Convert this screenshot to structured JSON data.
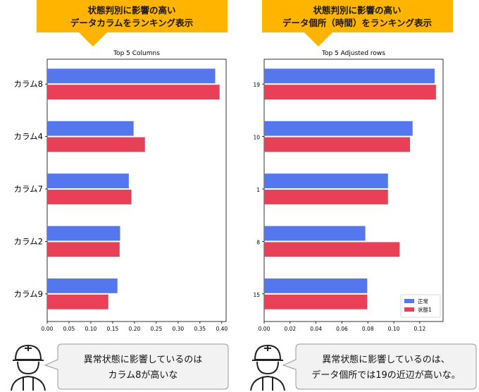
{
  "callouts": [
    {
      "line1": "状態判別に影響の高い",
      "line2": "データカラムをランキング表示"
    },
    {
      "line1": "状態判別に影響の高い",
      "line2": "データ個所（時間）をランキング表示"
    }
  ],
  "bubbles": [
    {
      "line1": "異常状態に影響しているのは",
      "line2": "カラム8が高いな"
    },
    {
      "line1": "異常状態に影響しているのは、",
      "line2": "データ個所では19の近辺が高いな。"
    }
  ],
  "colors": {
    "normal": "#5577ee",
    "abnormal": "#e84057",
    "callout_bg": "#ffb400",
    "bubble_bg": "#f2f2f2",
    "bubble_border": "#999999"
  },
  "chart_data": [
    {
      "type": "bar",
      "orientation": "horizontal",
      "title": "Top 5 Columns",
      "categories": [
        "カラム8",
        "カラム4",
        "カラム7",
        "カラム2",
        "カラム9"
      ],
      "series": [
        {
          "name": "正常",
          "values": [
            0.385,
            0.198,
            0.187,
            0.167,
            0.161
          ]
        },
        {
          "name": "状態1",
          "values": [
            0.395,
            0.224,
            0.193,
            0.166,
            0.14
          ]
        }
      ],
      "xlim": [
        0,
        0.41
      ],
      "xticks": [
        "0.00",
        "0.05",
        "0.10",
        "0.15",
        "0.20",
        "0.25",
        "0.30",
        "0.35",
        "0.40"
      ],
      "legend": "none"
    },
    {
      "type": "bar",
      "orientation": "horizontal",
      "title": "Top 5 Adjusted rows",
      "categories": [
        "19",
        "10",
        "1",
        "8",
        "15"
      ],
      "series": [
        {
          "name": "正常",
          "values": [
            0.1315,
            0.1145,
            0.0955,
            0.078,
            0.0795
          ]
        },
        {
          "name": "状態1",
          "values": [
            0.1325,
            0.1125,
            0.0955,
            0.1045,
            0.0795
          ]
        }
      ],
      "xlim": [
        0,
        0.138
      ],
      "xticks": [
        "0.00",
        "0.02",
        "0.04",
        "0.06",
        "0.08",
        "0.10",
        "0.12"
      ],
      "legend": "lower-right"
    }
  ]
}
